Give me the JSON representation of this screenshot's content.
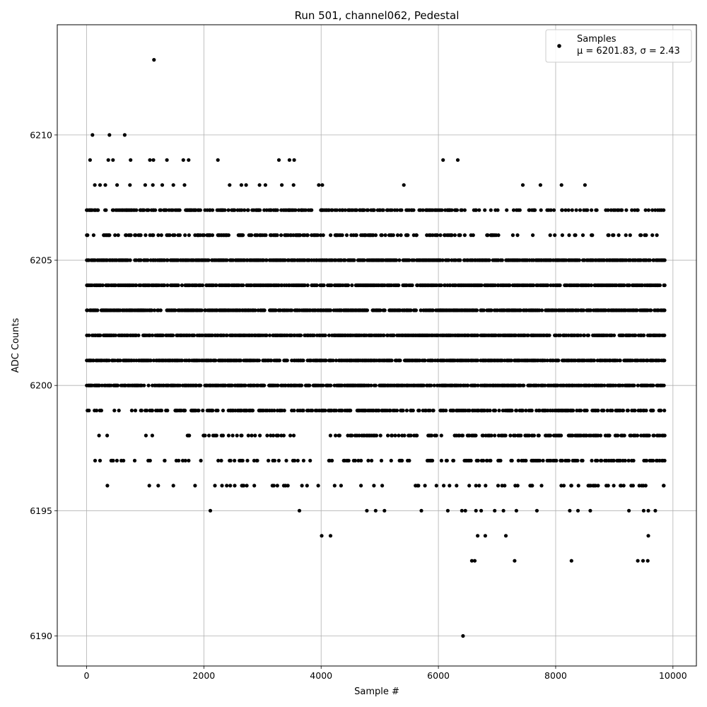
{
  "chart_data": {
    "type": "scatter",
    "title": "Run 501, channel062, Pedestal",
    "xlabel": "Sample #",
    "ylabel": "ADC Counts",
    "xlim": [
      -500,
      10400
    ],
    "ylim": [
      6188.8,
      6214.4
    ],
    "x_ticks": [
      0,
      2000,
      4000,
      6000,
      8000,
      10000
    ],
    "y_ticks": [
      6190,
      6195,
      6200,
      6205,
      6210
    ],
    "x_tick_labels": [
      "0",
      "2000",
      "4000",
      "6000",
      "8000",
      "10000"
    ],
    "y_tick_labels": [
      "6190",
      "6195",
      "6200",
      "6205",
      "6210"
    ],
    "grid": true,
    "legend_position": "top-right",
    "marker_color": "#000000",
    "series": [
      {
        "name": "Samples",
        "legend_label": "Samples",
        "legend_stats": "μ = 6201.83, σ = 2.43",
        "x_range": [
          0,
          9860
        ],
        "dense_levels": [
          6199,
          6200,
          6201,
          6202,
          6203,
          6204,
          6205,
          6206,
          6207
        ],
        "sparse_levels": [
          6198,
          6197,
          6196
        ],
        "outliers": [
          [
            1150,
            6213
          ],
          [
            100,
            6210
          ],
          [
            390,
            6210
          ],
          [
            650,
            6210
          ],
          [
            60,
            6209
          ],
          [
            370,
            6209
          ],
          [
            450,
            6209
          ],
          [
            750,
            6209
          ],
          [
            1080,
            6209
          ],
          [
            1140,
            6209
          ],
          [
            1370,
            6209
          ],
          [
            1650,
            6209
          ],
          [
            1740,
            6209
          ],
          [
            2240,
            6209
          ],
          [
            3280,
            6209
          ],
          [
            3460,
            6209
          ],
          [
            3540,
            6209
          ],
          [
            6080,
            6209
          ],
          [
            6330,
            6209
          ],
          [
            140,
            6208
          ],
          [
            230,
            6208
          ],
          [
            320,
            6208
          ],
          [
            520,
            6208
          ],
          [
            740,
            6208
          ],
          [
            1000,
            6208
          ],
          [
            1130,
            6208
          ],
          [
            1290,
            6208
          ],
          [
            1480,
            6208
          ],
          [
            1670,
            6208
          ],
          [
            2440,
            6208
          ],
          [
            2640,
            6208
          ],
          [
            2720,
            6208
          ],
          [
            2950,
            6208
          ],
          [
            3050,
            6208
          ],
          [
            3330,
            6208
          ],
          [
            3530,
            6208
          ],
          [
            3960,
            6208
          ],
          [
            4020,
            6208
          ],
          [
            5410,
            6208
          ],
          [
            7440,
            6208
          ],
          [
            7740,
            6208
          ],
          [
            8100,
            6208
          ],
          [
            8500,
            6208
          ],
          [
            820,
            6197
          ],
          [
            1330,
            6197
          ],
          [
            1640,
            6197
          ],
          [
            3100,
            6197
          ],
          [
            1480,
            6196
          ],
          [
            1850,
            6196
          ],
          [
            2310,
            6196
          ],
          [
            2390,
            6196
          ],
          [
            2680,
            6196
          ],
          [
            3760,
            6196
          ],
          [
            3950,
            6196
          ],
          [
            4340,
            6196
          ],
          [
            4680,
            6196
          ],
          [
            4900,
            6196
          ],
          [
            5610,
            6196
          ],
          [
            6190,
            6196
          ],
          [
            6310,
            6196
          ],
          [
            7600,
            6196
          ],
          [
            7760,
            6196
          ],
          [
            8270,
            6196
          ],
          [
            8680,
            6196
          ],
          [
            8990,
            6196
          ],
          [
            9320,
            6196
          ],
          [
            9840,
            6196
          ],
          [
            2110,
            6195
          ],
          [
            3630,
            6195
          ],
          [
            4780,
            6195
          ],
          [
            4930,
            6195
          ],
          [
            5080,
            6195
          ],
          [
            5710,
            6195
          ],
          [
            6160,
            6195
          ],
          [
            6400,
            6195
          ],
          [
            6460,
            6195
          ],
          [
            6640,
            6195
          ],
          [
            6730,
            6195
          ],
          [
            6960,
            6195
          ],
          [
            7110,
            6195
          ],
          [
            7330,
            6195
          ],
          [
            7680,
            6195
          ],
          [
            8240,
            6195
          ],
          [
            8380,
            6195
          ],
          [
            8590,
            6195
          ],
          [
            9250,
            6195
          ],
          [
            9500,
            6195
          ],
          [
            9580,
            6195
          ],
          [
            9700,
            6195
          ],
          [
            4010,
            6194
          ],
          [
            4160,
            6194
          ],
          [
            6670,
            6194
          ],
          [
            6800,
            6194
          ],
          [
            7150,
            6194
          ],
          [
            9580,
            6194
          ],
          [
            6570,
            6193
          ],
          [
            6620,
            6193
          ],
          [
            7300,
            6193
          ],
          [
            8270,
            6193
          ],
          [
            9400,
            6193
          ],
          [
            9490,
            6193
          ],
          [
            9570,
            6193
          ],
          [
            6420,
            6190
          ]
        ]
      }
    ]
  }
}
